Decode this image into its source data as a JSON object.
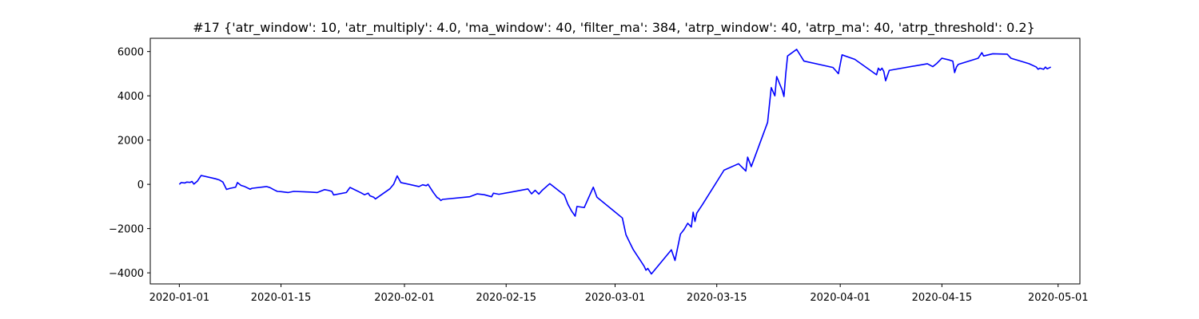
{
  "chart_data": {
    "type": "line",
    "title": "#17 {'atr_window': 10, 'atr_multiply': 4.0, 'ma_window': 40, 'filter_ma': 384, 'atrp_window': 40, 'atrp_ma': 40, 'atrp_threshold': 0.2}",
    "xlabel": "",
    "ylabel": "",
    "grid": false,
    "x_axis": {
      "type": "date",
      "range": [
        "2019-12-28",
        "2020-05-04"
      ],
      "tick_labels": [
        "2020-01-01",
        "2020-01-15",
        "2020-02-01",
        "2020-02-15",
        "2020-03-01",
        "2020-03-15",
        "2020-04-01",
        "2020-04-15",
        "2020-05-01"
      ]
    },
    "y_axis": {
      "range": [
        -4500,
        6600
      ],
      "ticks": [
        -4000,
        -2000,
        0,
        2000,
        4000,
        6000
      ],
      "tick_labels": [
        "−4000",
        "−2000",
        "0",
        "2000",
        "4000",
        "6000"
      ]
    },
    "series": [
      {
        "color": "#0000ff",
        "points": [
          [
            "2020-01-01",
            0
          ],
          [
            "2020-01-01 06:00",
            80
          ],
          [
            "2020-01-01 18:00",
            60
          ],
          [
            "2020-01-02",
            100
          ],
          [
            "2020-01-02 12:00",
            90
          ],
          [
            "2020-01-02 18:00",
            130
          ],
          [
            "2020-01-03",
            10
          ],
          [
            "2020-01-03 12:00",
            150
          ],
          [
            "2020-01-04",
            400
          ],
          [
            "2020-01-06",
            250
          ],
          [
            "2020-01-06 12:00",
            200
          ],
          [
            "2020-01-07",
            100
          ],
          [
            "2020-01-07 12:00",
            -230
          ],
          [
            "2020-01-08",
            -180
          ],
          [
            "2020-01-08 18:00",
            -130
          ],
          [
            "2020-01-09",
            80
          ],
          [
            "2020-01-09 12:00",
            -50
          ],
          [
            "2020-01-10",
            -100
          ],
          [
            "2020-01-10 18:00",
            -220
          ],
          [
            "2020-01-11",
            -180
          ],
          [
            "2020-01-13",
            -100
          ],
          [
            "2020-01-13 12:00",
            -150
          ],
          [
            "2020-01-14",
            -240
          ],
          [
            "2020-01-14 12:00",
            -320
          ],
          [
            "2020-01-15",
            -330
          ],
          [
            "2020-01-16",
            -370
          ],
          [
            "2020-01-16 18:00",
            -320
          ],
          [
            "2020-01-19",
            -350
          ],
          [
            "2020-01-20",
            -370
          ],
          [
            "2020-01-21",
            -240
          ],
          [
            "2020-01-21 12:00",
            -270
          ],
          [
            "2020-01-22",
            -320
          ],
          [
            "2020-01-22 06:00",
            -480
          ],
          [
            "2020-01-24",
            -370
          ],
          [
            "2020-01-24 12:00",
            -140
          ],
          [
            "2020-01-26",
            -380
          ],
          [
            "2020-01-26 12:00",
            -470
          ],
          [
            "2020-01-27",
            -400
          ],
          [
            "2020-01-27 06:00",
            -520
          ],
          [
            "2020-01-27 18:00",
            -580
          ],
          [
            "2020-01-28",
            -660
          ],
          [
            "2020-01-29",
            -430
          ],
          [
            "2020-01-30",
            -200
          ],
          [
            "2020-01-30 12:00",
            0
          ],
          [
            "2020-01-31",
            380
          ],
          [
            "2020-01-31 12:00",
            80
          ],
          [
            "2020-02-03",
            -100
          ],
          [
            "2020-02-03 12:00",
            -20
          ],
          [
            "2020-02-04",
            -60
          ],
          [
            "2020-02-04 06:00",
            0
          ],
          [
            "2020-02-05",
            -380
          ],
          [
            "2020-02-05 12:00",
            -600
          ],
          [
            "2020-02-05 18:00",
            -640
          ],
          [
            "2020-02-06",
            -730
          ],
          [
            "2020-02-06 06:00",
            -680
          ],
          [
            "2020-02-10",
            -560
          ],
          [
            "2020-02-11",
            -430
          ],
          [
            "2020-02-12",
            -470
          ],
          [
            "2020-02-13",
            -560
          ],
          [
            "2020-02-13 06:00",
            -400
          ],
          [
            "2020-02-14",
            -450
          ],
          [
            "2020-02-18",
            -210
          ],
          [
            "2020-02-18 12:00",
            -430
          ],
          [
            "2020-02-19",
            -270
          ],
          [
            "2020-02-19 12:00",
            -440
          ],
          [
            "2020-02-20",
            -260
          ],
          [
            "2020-02-21",
            30
          ],
          [
            "2020-02-23",
            -480
          ],
          [
            "2020-02-23 12:00",
            -900
          ],
          [
            "2020-02-24",
            -1200
          ],
          [
            "2020-02-24 12:00",
            -1440
          ],
          [
            "2020-02-24 18:00",
            -1000
          ],
          [
            "2020-02-25 18:00",
            -1050
          ],
          [
            "2020-02-27",
            -130
          ],
          [
            "2020-02-27 12:00",
            -580
          ],
          [
            "2020-03-02",
            -1520
          ],
          [
            "2020-03-02 12:00",
            -2280
          ],
          [
            "2020-03-03",
            -2620
          ],
          [
            "2020-03-03 12:00",
            -2950
          ],
          [
            "2020-03-04",
            -3200
          ],
          [
            "2020-03-04 12:00",
            -3450
          ],
          [
            "2020-03-05",
            -3700
          ],
          [
            "2020-03-05 06:00",
            -3880
          ],
          [
            "2020-03-05 12:00",
            -3800
          ],
          [
            "2020-03-06",
            -4050
          ],
          [
            "2020-03-08 18:00",
            -2960
          ],
          [
            "2020-03-09 06:00",
            -3440
          ],
          [
            "2020-03-10",
            -2250
          ],
          [
            "2020-03-10 12:00",
            -2040
          ],
          [
            "2020-03-11",
            -1760
          ],
          [
            "2020-03-11 12:00",
            -1930
          ],
          [
            "2020-03-11 18:00",
            -1260
          ],
          [
            "2020-03-12",
            -1680
          ],
          [
            "2020-03-12 06:00",
            -1300
          ],
          [
            "2020-03-13",
            -930
          ],
          [
            "2020-03-16",
            640
          ],
          [
            "2020-03-18",
            930
          ],
          [
            "2020-03-19",
            600
          ],
          [
            "2020-03-19 06:00",
            1230
          ],
          [
            "2020-03-19 18:00",
            800
          ],
          [
            "2020-03-22",
            2800
          ],
          [
            "2020-03-22 12:00",
            4370
          ],
          [
            "2020-03-23",
            4000
          ],
          [
            "2020-03-23 06:00",
            4870
          ],
          [
            "2020-03-24",
            4270
          ],
          [
            "2020-03-24 06:00",
            3970
          ],
          [
            "2020-03-24 12:00",
            5000
          ],
          [
            "2020-03-24 18:00",
            5800
          ],
          [
            "2020-03-26",
            6100
          ],
          [
            "2020-03-27",
            5570
          ],
          [
            "2020-03-31",
            5280
          ],
          [
            "2020-03-31 18:00",
            5000
          ],
          [
            "2020-04-01 06:00",
            5850
          ],
          [
            "2020-04-03",
            5650
          ],
          [
            "2020-04-06",
            4950
          ],
          [
            "2020-04-06 06:00",
            5250
          ],
          [
            "2020-04-06 12:00",
            5150
          ],
          [
            "2020-04-06 18:00",
            5250
          ],
          [
            "2020-04-07",
            5100
          ],
          [
            "2020-04-07 06:00",
            4680
          ],
          [
            "2020-04-07 18:00",
            5150
          ],
          [
            "2020-04-13",
            5450
          ],
          [
            "2020-04-13 18:00",
            5320
          ],
          [
            "2020-04-14 06:00",
            5450
          ],
          [
            "2020-04-15",
            5700
          ],
          [
            "2020-04-16",
            5620
          ],
          [
            "2020-04-16 12:00",
            5570
          ],
          [
            "2020-04-16 18:00",
            5050
          ],
          [
            "2020-04-17",
            5300
          ],
          [
            "2020-04-17 06:00",
            5420
          ],
          [
            "2020-04-20",
            5700
          ],
          [
            "2020-04-20 12:00",
            5950
          ],
          [
            "2020-04-20 18:00",
            5800
          ],
          [
            "2020-04-22",
            5900
          ],
          [
            "2020-04-24",
            5880
          ],
          [
            "2020-04-24 12:00",
            5700
          ],
          [
            "2020-04-27",
            5450
          ],
          [
            "2020-04-28",
            5300
          ],
          [
            "2020-04-28 06:00",
            5200
          ],
          [
            "2020-04-28 12:00",
            5250
          ],
          [
            "2020-04-29",
            5200
          ],
          [
            "2020-04-29 06:00",
            5300
          ],
          [
            "2020-04-29 12:00",
            5220
          ],
          [
            "2020-04-30",
            5300
          ]
        ]
      }
    ]
  }
}
